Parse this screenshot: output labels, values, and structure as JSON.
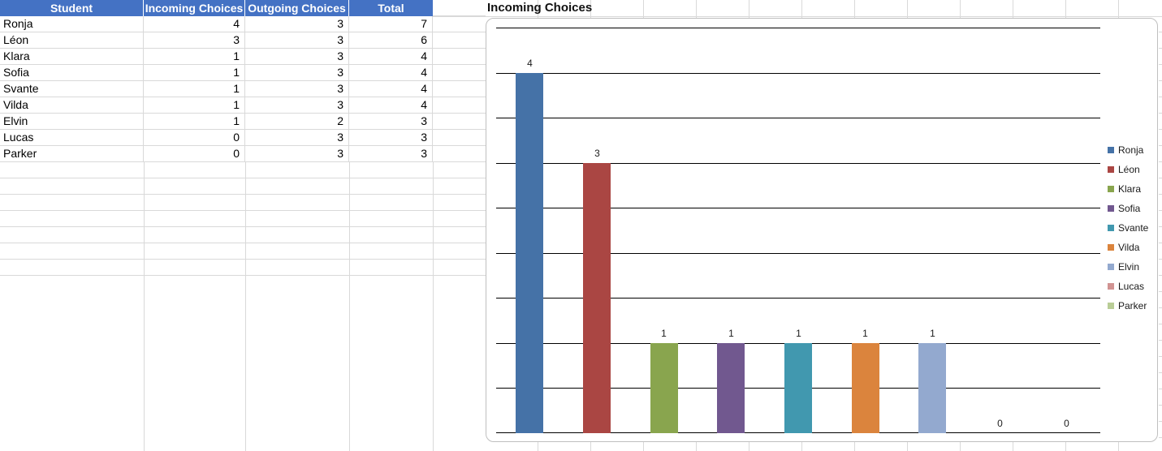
{
  "table": {
    "headers": [
      "Student",
      "Incoming Choices",
      "Outgoing Choices",
      "Total"
    ],
    "rows": [
      [
        "Ronja",
        "4",
        "3",
        "7"
      ],
      [
        "Léon",
        "3",
        "3",
        "6"
      ],
      [
        "Klara",
        "1",
        "3",
        "4"
      ],
      [
        "Sofia",
        "1",
        "3",
        "4"
      ],
      [
        "Svante",
        "1",
        "3",
        "4"
      ],
      [
        "Vilda",
        "1",
        "3",
        "4"
      ],
      [
        "Elvin",
        "1",
        "2",
        "3"
      ],
      [
        "Lucas",
        "0",
        "3",
        "3"
      ],
      [
        "Parker",
        "0",
        "3",
        "3"
      ]
    ],
    "header_bg": "#4472C4",
    "header_text_color": "#FFFFFF"
  },
  "chart_data": {
    "type": "bar",
    "title": "Incoming Choices",
    "categories": [
      "Ronja",
      "Léon",
      "Klara",
      "Sofia",
      "Svante",
      "Vilda",
      "Elvin",
      "Lucas",
      "Parker"
    ],
    "values": [
      4,
      3,
      1,
      1,
      1,
      1,
      1,
      0,
      0
    ],
    "series_colors": [
      "#4572A7",
      "#AA4643",
      "#89A54E",
      "#71588F",
      "#4198AF",
      "#DB843D",
      "#93A9CF",
      "#D19392",
      "#B9CD96"
    ],
    "data_labels": [
      "4",
      "3",
      "1",
      "1",
      "1",
      "1",
      "1",
      "0",
      "0"
    ],
    "legend_entries": [
      "Ronja",
      "Léon",
      "Klara",
      "Sofia",
      "Svante",
      "Vilda",
      "Elvin",
      "Lucas",
      "Parker"
    ],
    "legend_position": "right",
    "xlabel": "",
    "ylabel": "",
    "ylim": [
      0,
      4.5
    ],
    "gridline_step": 0.5,
    "grid": true,
    "axis_tick_labels_visible": false,
    "gridline_color": "#000000",
    "chart_border_color": "#BFBFBF"
  }
}
